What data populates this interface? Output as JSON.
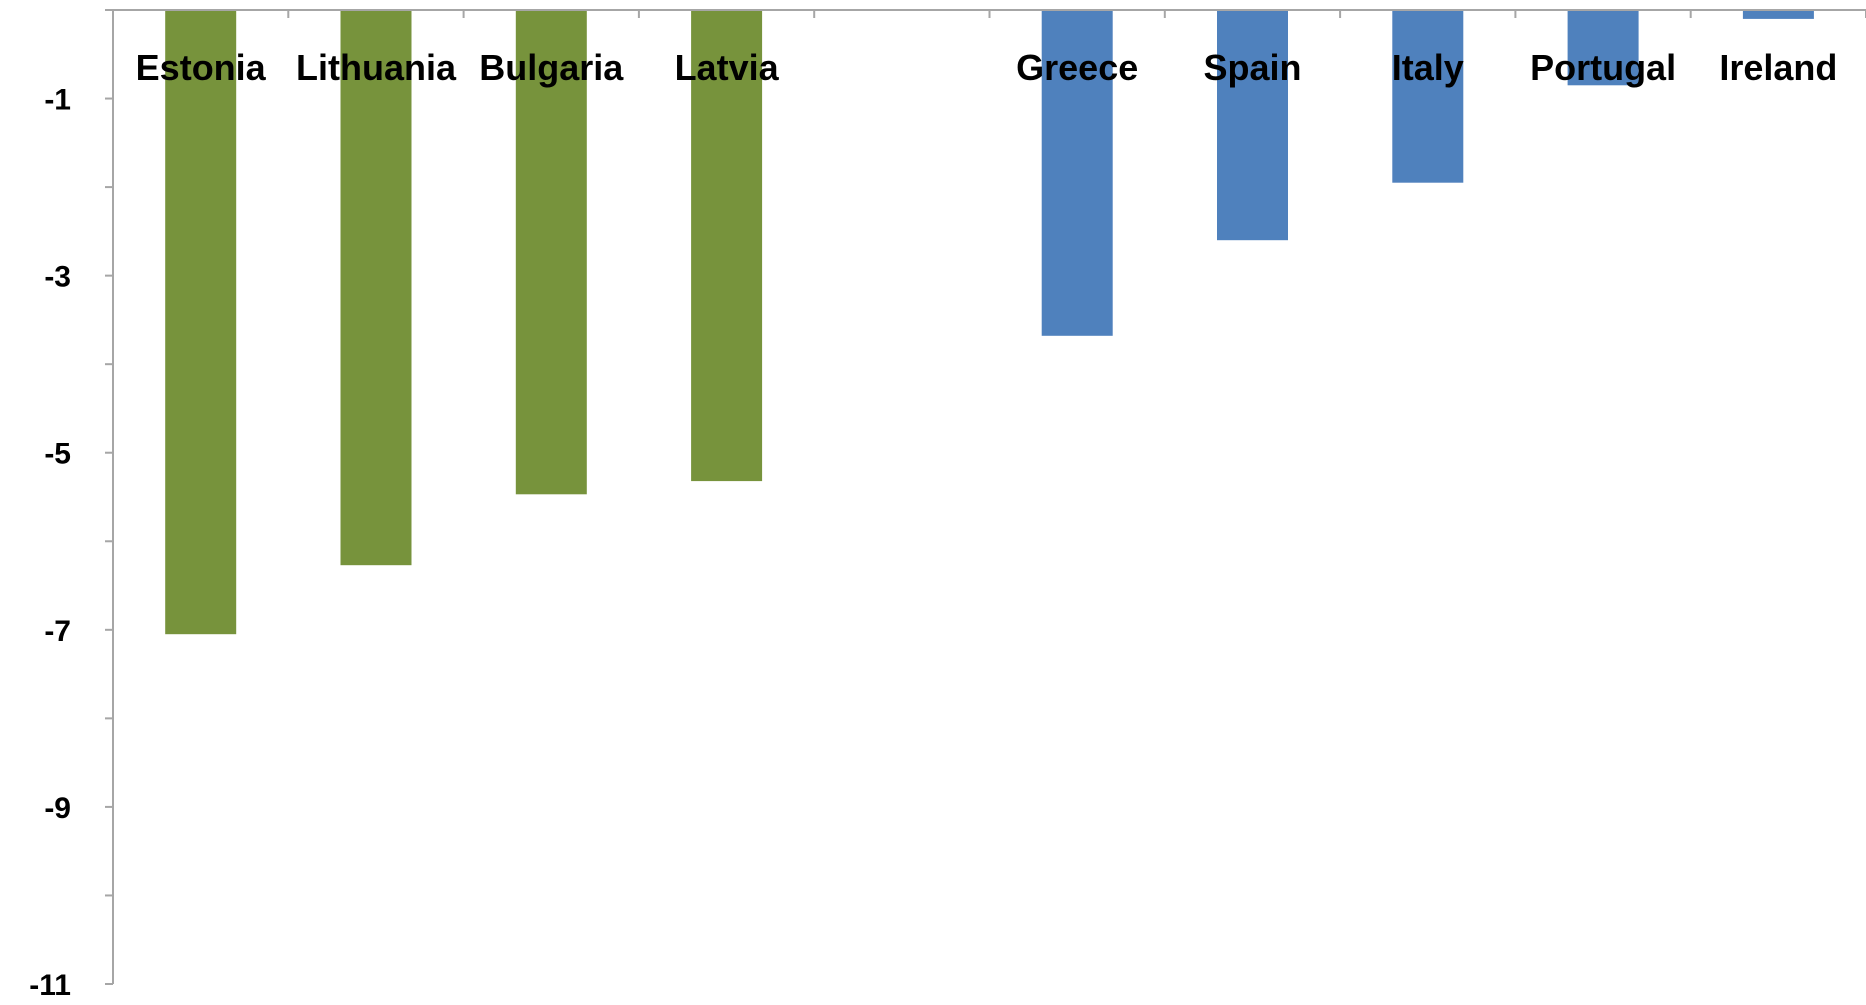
{
  "chart_data": {
    "type": "bar",
    "categories": [
      "Estonia",
      "Lithuania",
      "Bulgaria",
      "Latvia",
      "",
      "Greece",
      "Spain",
      "Italy",
      "Portugal",
      "Ireland"
    ],
    "values": [
      -7.05,
      -6.27,
      -5.47,
      -5.32,
      null,
      -3.68,
      -2.6,
      -1.95,
      -0.85,
      -0.1
    ],
    "bar_colors": [
      "#77933c",
      "#77933c",
      "#77933c",
      "#77933c",
      null,
      "#4f81bd",
      "#4f81bd",
      "#4f81bd",
      "#4f81bd",
      "#4f81bd"
    ],
    "y_ticks": [
      "-1",
      "-3",
      "-5",
      "-7",
      "-9",
      "-11"
    ],
    "ylim": [
      -11,
      0
    ],
    "title": "",
    "xlabel": "",
    "ylabel": "",
    "grid": false,
    "legend": "none"
  },
  "colors": {
    "green_group": "#77933c",
    "blue_group": "#4f81bd",
    "axis": "#a6a6a6"
  }
}
